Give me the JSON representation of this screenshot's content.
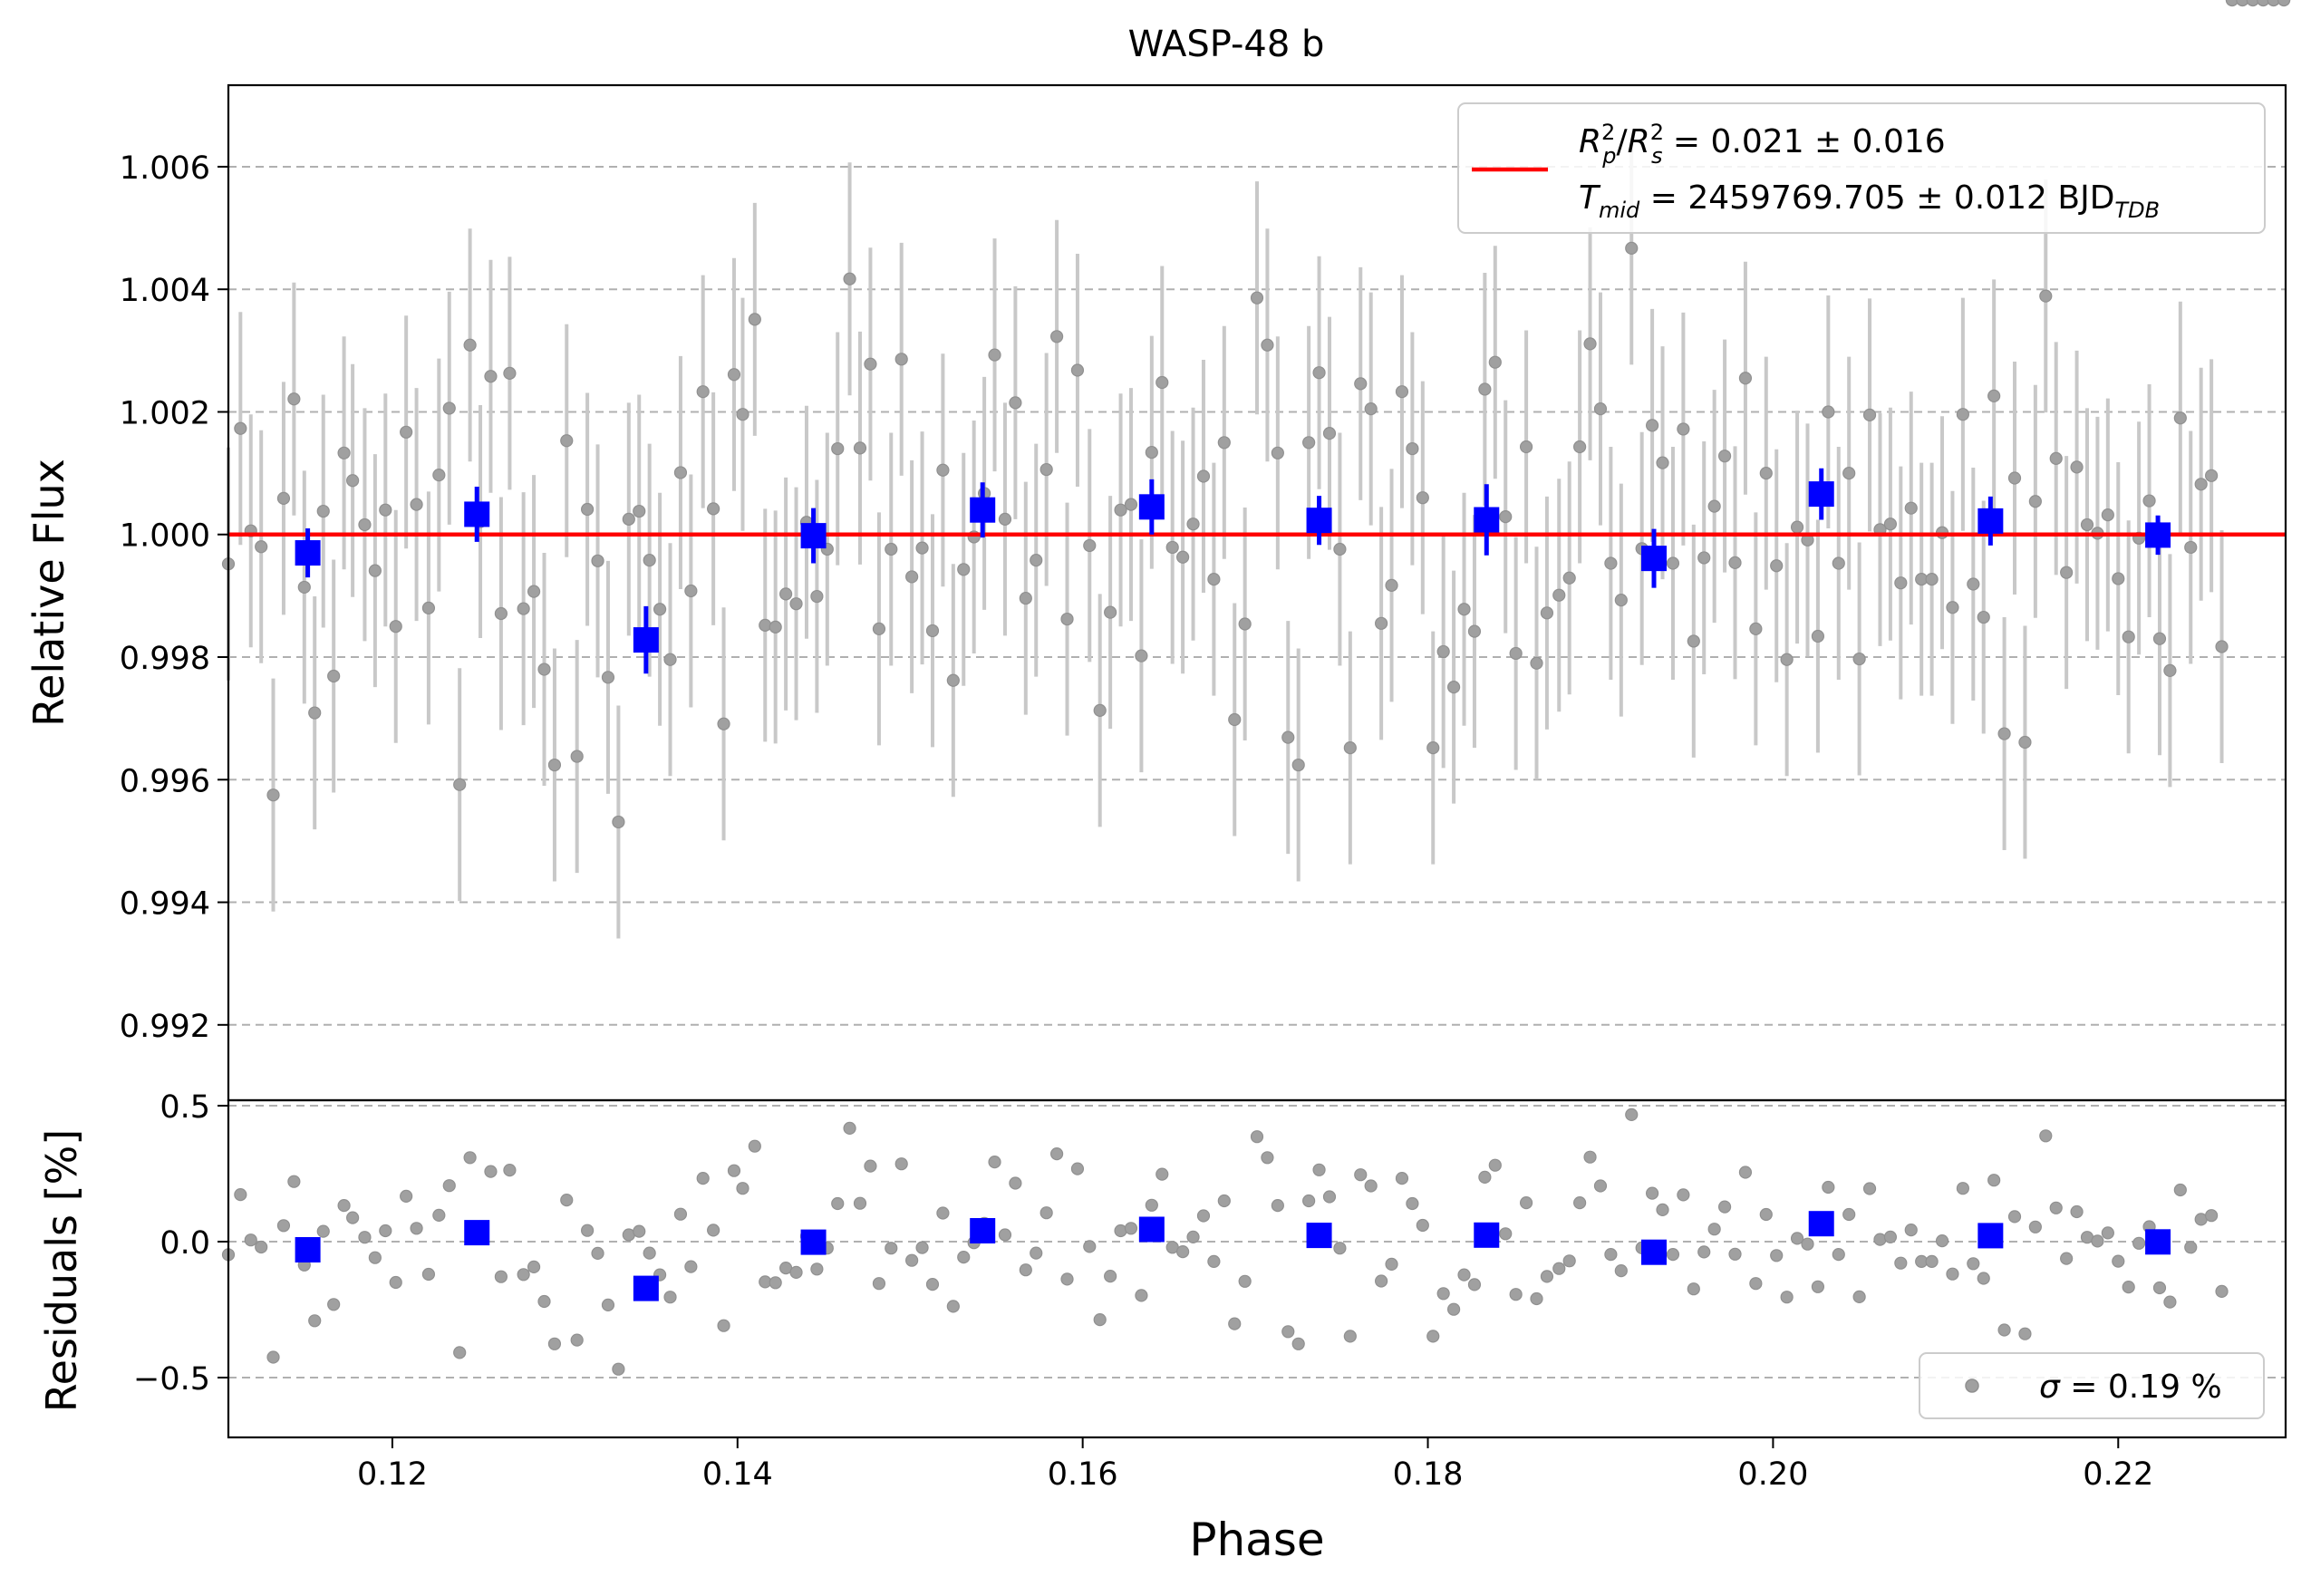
{
  "chart_data": [
    {
      "panel": "top",
      "type": "scatter",
      "title": "WASP-48 b",
      "xlabel": "Phase",
      "ylabel": "Relative Flux",
      "xlim": [
        0.1105,
        0.2297
      ],
      "ylim": [
        0.99077,
        1.00733
      ],
      "x_ticks": [
        0.12,
        0.14,
        0.16,
        0.18,
        0.2,
        0.22
      ],
      "x_tick_labels": [
        "0.12",
        "0.14",
        "0.16",
        "0.18",
        "0.20",
        "0.22"
      ],
      "y_ticks": [
        0.992,
        0.994,
        0.996,
        0.998,
        1.0,
        1.002,
        1.004,
        1.006
      ],
      "y_tick_labels": [
        "0.992",
        "0.994",
        "0.996",
        "0.998",
        "1.000",
        "1.002",
        "1.004",
        "1.006"
      ],
      "grid": "horizontal dashed",
      "legend_position": "top-right",
      "legend": {
        "line1_lhs": "R",
        "line1_rhs": " = 0.021 ± 0.016",
        "line2_lhs": "T",
        "line2_sub": "mid",
        "line2_rhs": " = 2459769.705 ± 0.012 BJD",
        "line2_unit_sub": "TDB"
      },
      "model": {
        "label": "transit model",
        "y": 1.0,
        "color": "#ff0000"
      },
      "binned": {
        "x": [
          0.1151,
          0.1249,
          0.1347,
          0.1444,
          0.1542,
          0.164,
          0.1737,
          0.1834,
          0.1931,
          0.2028,
          0.2126,
          0.2223
        ],
        "y": [
          0.9997,
          1.00033,
          0.99828,
          0.99998,
          1.0004,
          1.00045,
          1.00023,
          1.00024,
          0.99961,
          1.00066,
          1.00022,
          0.99999
        ],
        "err": [
          0.0004,
          0.00045,
          0.00055,
          0.00045,
          0.00045,
          0.00045,
          0.0004,
          0.00058,
          0.00048,
          0.00042,
          0.0004,
          0.00032
        ],
        "color": "#0000ff"
      },
      "raw_color": "#808080",
      "raw_error": 0.0019
    },
    {
      "panel": "bottom",
      "type": "scatter",
      "xlabel": "Phase",
      "ylabel": "Residuals [%]",
      "xlim": [
        0.1105,
        0.2297
      ],
      "ylim": [
        -0.72,
        0.52
      ],
      "y_ticks": [
        -0.5,
        0.0,
        0.5
      ],
      "y_tick_labels": [
        "−0.5",
        "0.0",
        "0.5"
      ],
      "grid": "horizontal dashed",
      "legend_position": "bottom-right",
      "legend": {
        "prefix": "σ",
        "text": " = 0.19 %"
      },
      "binned_residuals_pct": [
        -0.03,
        0.033,
        -0.172,
        -0.002,
        0.04,
        0.045,
        0.023,
        0.024,
        -0.039,
        0.066,
        0.022,
        -0.001
      ]
    }
  ],
  "raw_points": {
    "phase": [
      0.1105,
      0.1112,
      0.1118,
      0.1124,
      0.1131,
      0.1137,
      0.1143,
      0.1149,
      0.1155,
      0.116,
      0.1166,
      0.1172,
      0.1177,
      0.1184,
      0.119,
      0.1196,
      0.1202,
      0.1208,
      0.1214,
      0.1221,
      0.1227,
      0.1233,
      0.1239,
      0.1245,
      0.1251,
      0.1257,
      0.1263,
      0.1268,
      0.1276,
      0.1282,
      0.1288,
      0.1294,
      0.1301,
      0.1307,
      0.1313,
      0.1319,
      0.1325,
      0.1331,
      0.1337,
      0.1343,
      0.1349,
      0.1355,
      0.1361,
      0.1367,
      0.1373,
      0.138,
      0.1386,
      0.1392,
      0.1398,
      0.1403,
      0.141,
      0.1416,
      0.1422,
      0.1428,
      0.1434,
      0.144,
      0.1446,
      0.1452,
      0.1458,
      0.1465,
      0.1471,
      0.1477,
      0.1482,
      0.1489,
      0.1495,
      0.1501,
      0.1507,
      0.1513,
      0.1519,
      0.1525,
      0.1531,
      0.1537,
      0.1543,
      0.1549,
      0.1555,
      0.1561,
      0.1567,
      0.1573,
      0.1579,
      0.1585,
      0.1591,
      0.1597,
      0.1604,
      0.161,
      0.1616,
      0.1622,
      0.1628,
      0.1634,
      0.164,
      0.1646,
      0.1652,
      0.1658,
      0.1664,
      0.167,
      0.1676,
      0.1682,
      0.1688,
      0.1694,
      0.1701,
      0.1707,
      0.1713,
      0.1719,
      0.1725,
      0.1731,
      0.1737,
      0.1743,
      0.1749,
      0.1755,
      0.1761,
      0.1767,
      0.1773,
      0.1779,
      0.1785,
      0.1791,
      0.1797,
      0.1803,
      0.1809,
      0.1815,
      0.1821,
      0.1827,
      0.1833,
      0.1839,
      0.1845,
      0.1851,
      0.1857,
      0.1863,
      0.1869,
      0.1876,
      0.1882,
      0.1888,
      0.1894,
      0.19,
      0.1906,
      0.1912,
      0.1918,
      0.1924,
      0.193,
      0.1936,
      0.1942,
      0.1948,
      0.1954,
      0.196,
      0.1966,
      0.1972,
      0.1978,
      0.1984,
      0.199,
      0.1996,
      0.2002,
      0.2008,
      0.2014,
      0.202,
      0.2026,
      0.2032,
      0.2038,
      0.2044,
      0.205,
      0.2056,
      0.2062,
      0.2068,
      0.2074,
      0.208,
      0.2086,
      0.2092,
      0.2098,
      0.2104,
      0.211,
      0.2116,
      0.2122,
      0.2128,
      0.2134,
      0.214,
      0.2146,
      0.2152,
      0.2158,
      0.2164,
      0.217,
      0.2176,
      0.2182,
      0.2188,
      0.2194,
      0.22,
      0.2206,
      0.2212,
      0.2218,
      0.2224,
      0.223,
      0.2236,
      0.2242,
      0.2248,
      0.2254,
      0.226,
      0.2266,
      0.2272,
      0.2278,
      0.2284,
      0.229,
      0.2296
    ],
    "flux": [
      0.99952,
      1.00173,
      1.00006,
      0.9998,
      0.99575,
      1.00059,
      1.00221,
      0.99914,
      0.99709,
      1.00038,
      0.99769,
      1.00133,
      1.00088,
      1.00016,
      0.99941,
      1.0004,
      0.9985,
      1.00167,
      1.00049,
      0.9988,
      1.00097,
      1.00206,
      0.99592,
      1.00309,
      1.00021,
      1.00258,
      0.99871,
      1.00263,
      0.99879,
      0.99907,
      0.9978,
      0.99624,
      1.00153,
      0.99638,
      1.00041,
      0.99957,
      0.99767,
      0.99531,
      1.00025,
      1.00038,
      0.99958,
      0.99878,
      0.99796,
      1.00101,
      0.99908,
      1.00233,
      1.00042,
      0.99691,
      1.00261,
      1.00196,
      1.00351,
      0.99852,
      0.99849,
      0.99903,
      0.99887,
      1.0002,
      0.99899,
      0.99976,
      1.0014,
      1.00417,
      1.00141,
      1.00278,
      0.99846,
      0.99976,
      1.00286,
      0.99931,
      0.99978,
      0.99843,
      1.00105,
      0.99762,
      0.99943,
      0.99996,
      1.00067,
      1.00293,
      1.00025,
      1.00215,
      0.99896,
      0.99958,
      1.00106,
      1.00323,
      0.99862,
      1.00268,
      0.99982,
      0.99713,
      0.99873,
      1.0004,
      1.00049,
      0.99802,
      1.00134,
      1.00248,
      0.99979,
      0.99963,
      1.00017,
      1.00095,
      0.99927,
      1.0015,
      0.99698,
      0.99854,
      1.00386,
      1.00309,
      1.00133,
      0.99669,
      0.99624,
      1.0015,
      1.00264,
      1.00165,
      0.99976,
      0.99652,
      1.00246,
      1.00205,
      0.99855,
      0.99917,
      1.00233,
      1.0014,
      1.0006,
      0.99652,
      0.99809,
      0.99751,
      0.99878,
      0.99842,
      1.00237,
      1.00281,
      1.00029,
      0.99806,
      1.00143,
      0.9979,
      0.99872,
      0.99901,
      0.99929,
      1.00143,
      1.00311,
      1.00205,
      0.99953,
      0.99893,
      1.00467,
      0.99977,
      1.00178,
      1.00117,
      0.99953,
      1.00172,
      0.99826,
      0.99962,
      1.00046,
      1.00128,
      0.99954,
      1.00255,
      0.99846,
      1.001,
      0.99949,
      0.99796,
      1.00012,
      0.99991,
      0.99834,
      1.002,
      0.99953,
      1.001,
      0.99797,
      1.00195,
      1.00008,
      1.00017,
      0.99921,
      1.00043,
      0.99927,
      0.99927,
      1.00003,
      0.99881,
      1.00196,
      0.99919,
      0.99865,
      1.00226,
      0.99675,
      1.00092,
      0.99661,
      1.00054,
      1.00389,
      1.00124,
      0.99938,
      1.0011,
      1.00016,
      1.00002,
      1.00032,
      0.99928,
      0.99833,
      0.99994,
      1.00055,
      0.9983,
      0.99778,
      1.0019,
      0.99979,
      1.00082,
      1.00096,
      0.99817
    ]
  },
  "colors": {
    "raw_errorbar": "#c8c8c8",
    "raw_point": "#a0a0a0",
    "binned": "#0000ff",
    "model": "#ff0000",
    "grid": "#b0b0b0",
    "legend_border": "#cccccc"
  }
}
